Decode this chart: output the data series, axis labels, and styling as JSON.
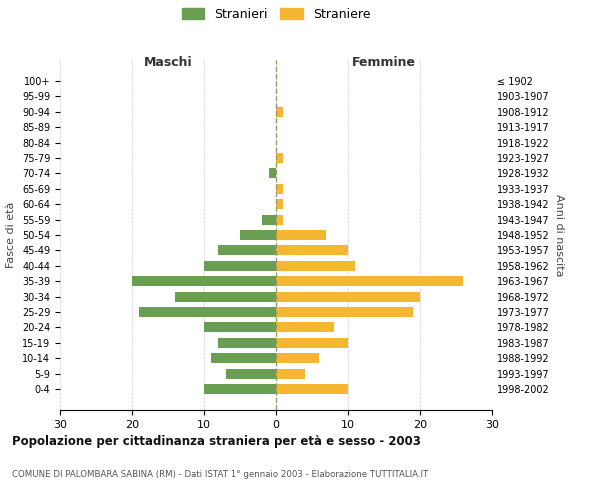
{
  "age_groups": [
    "100+",
    "95-99",
    "90-94",
    "85-89",
    "80-84",
    "75-79",
    "70-74",
    "65-69",
    "60-64",
    "55-59",
    "50-54",
    "45-49",
    "40-44",
    "35-39",
    "30-34",
    "25-29",
    "20-24",
    "15-19",
    "10-14",
    "5-9",
    "0-4"
  ],
  "birth_years": [
    "≤ 1902",
    "1903-1907",
    "1908-1912",
    "1913-1917",
    "1918-1922",
    "1923-1927",
    "1928-1932",
    "1933-1937",
    "1938-1942",
    "1943-1947",
    "1948-1952",
    "1953-1957",
    "1958-1962",
    "1963-1967",
    "1968-1972",
    "1973-1977",
    "1978-1982",
    "1983-1987",
    "1988-1992",
    "1993-1997",
    "1998-2002"
  ],
  "maschi": [
    0,
    0,
    0,
    0,
    0,
    0,
    1,
    0,
    0,
    2,
    5,
    8,
    10,
    20,
    14,
    19,
    10,
    8,
    9,
    7,
    10
  ],
  "femmine": [
    0,
    0,
    1,
    0,
    0,
    1,
    0,
    1,
    1,
    1,
    7,
    10,
    11,
    26,
    20,
    19,
    8,
    10,
    6,
    4,
    10
  ],
  "color_maschi": "#6a9e52",
  "color_femmine": "#f5b731",
  "title": "Popolazione per cittadinanza straniera per età e sesso - 2003",
  "subtitle": "COMUNE DI PALOMBARA SABINA (RM) - Dati ISTAT 1° gennaio 2003 - Elaborazione TUTTITALIA.IT",
  "xlabel_left": "Maschi",
  "xlabel_right": "Femmine",
  "ylabel_left": "Fasce di età",
  "ylabel_right": "Anni di nascita",
  "xlim": 30,
  "legend_stranieri": "Stranieri",
  "legend_straniere": "Straniere",
  "background_color": "#ffffff",
  "grid_color": "#cccccc"
}
